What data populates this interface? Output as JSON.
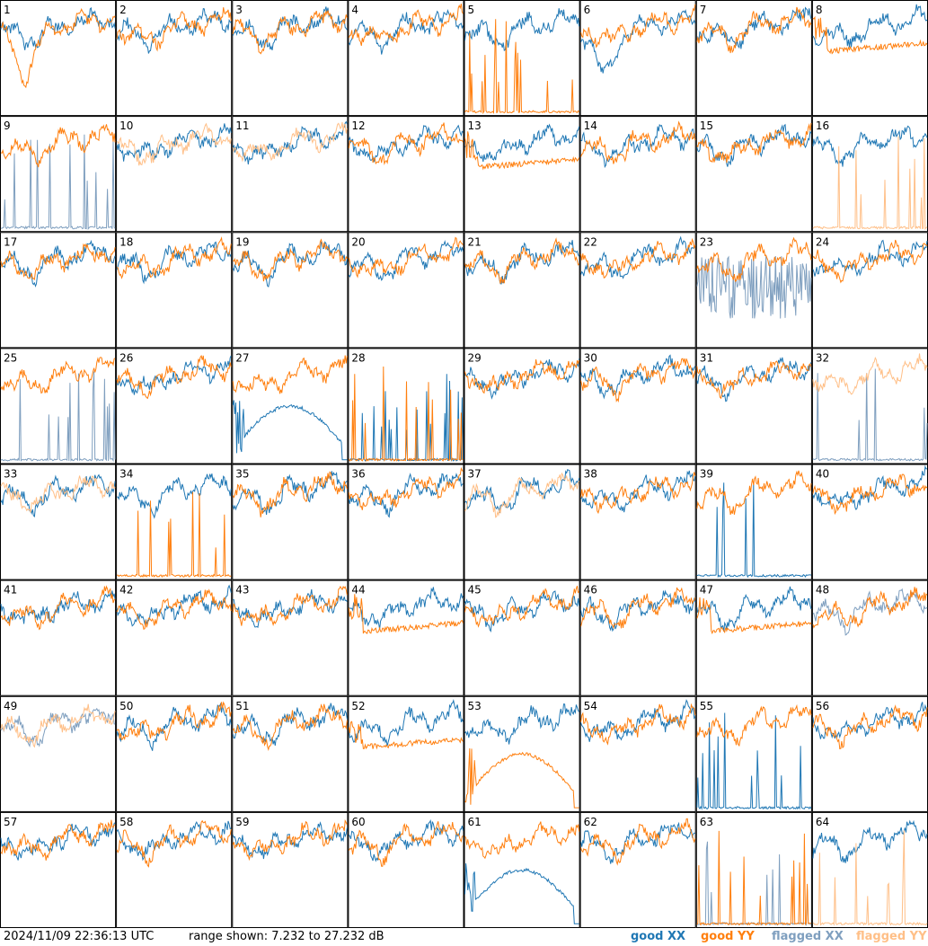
{
  "footer": {
    "timestamp": "2024/11/09 22:36:13 UTC",
    "range_text": "range shown: 7.232 to 27.232 dB"
  },
  "legend": [
    {
      "key": "good_xx",
      "label": "good XX",
      "color": "#1f77b4"
    },
    {
      "key": "good_yy",
      "label": "good YY",
      "color": "#ff7f0e"
    },
    {
      "key": "flagged_xx",
      "label": "flagged XX",
      "color": "#7f9fbf"
    },
    {
      "key": "flagged_yy",
      "label": "flagged YY",
      "color": "#ffbf87"
    }
  ],
  "chart_data": {
    "type": "line",
    "layout": "small-multiples",
    "ylim": [
      7.232,
      27.232
    ],
    "grid_rows": 8,
    "grid_cols": 8,
    "panels": [
      {
        "id": 1,
        "xx": "good",
        "yy": "good",
        "xx_shape": "normal",
        "yy_shape": "dip"
      },
      {
        "id": 2,
        "xx": "good",
        "yy": "good",
        "xx_shape": "normal",
        "yy_shape": "normal"
      },
      {
        "id": 3,
        "xx": "good",
        "yy": "good",
        "xx_shape": "normal",
        "yy_shape": "normal"
      },
      {
        "id": 4,
        "xx": "good",
        "yy": "good",
        "xx_shape": "normal",
        "yy_shape": "normal"
      },
      {
        "id": 5,
        "xx": "good",
        "yy": "good",
        "xx_shape": "normal",
        "yy_shape": "spikes"
      },
      {
        "id": 6,
        "xx": "good",
        "yy": "good",
        "xx_shape": "dip",
        "yy_shape": "normal"
      },
      {
        "id": 7,
        "xx": "good",
        "yy": "good",
        "xx_shape": "normal",
        "yy_shape": "normal"
      },
      {
        "id": 8,
        "xx": "good",
        "yy": "good",
        "xx_shape": "normal",
        "yy_shape": "flat"
      },
      {
        "id": 9,
        "xx": "flagged",
        "yy": "good",
        "xx_shape": "spikes",
        "yy_shape": "normal"
      },
      {
        "id": 10,
        "xx": "good",
        "yy": "flagged",
        "xx_shape": "normal",
        "yy_shape": "normal"
      },
      {
        "id": 11,
        "xx": "good",
        "yy": "flagged",
        "xx_shape": "normal",
        "yy_shape": "normal"
      },
      {
        "id": 12,
        "xx": "good",
        "yy": "good",
        "xx_shape": "normal",
        "yy_shape": "normal"
      },
      {
        "id": 13,
        "xx": "good",
        "yy": "good",
        "xx_shape": "normal",
        "yy_shape": "flat"
      },
      {
        "id": 14,
        "xx": "good",
        "yy": "good",
        "xx_shape": "normal",
        "yy_shape": "normal"
      },
      {
        "id": 15,
        "xx": "good",
        "yy": "good",
        "xx_shape": "normal",
        "yy_shape": "normal"
      },
      {
        "id": 16,
        "xx": "good",
        "yy": "flagged",
        "xx_shape": "normal",
        "yy_shape": "spikes"
      },
      {
        "id": 17,
        "xx": "good",
        "yy": "good",
        "xx_shape": "normal",
        "yy_shape": "normal"
      },
      {
        "id": 18,
        "xx": "good",
        "yy": "good",
        "xx_shape": "normal",
        "yy_shape": "normal"
      },
      {
        "id": 19,
        "xx": "good",
        "yy": "good",
        "xx_shape": "normal",
        "yy_shape": "normal"
      },
      {
        "id": 20,
        "xx": "good",
        "yy": "good",
        "xx_shape": "normal",
        "yy_shape": "normal"
      },
      {
        "id": 21,
        "xx": "good",
        "yy": "good",
        "xx_shape": "normal",
        "yy_shape": "normal"
      },
      {
        "id": 22,
        "xx": "good",
        "yy": "good",
        "xx_shape": "normal",
        "yy_shape": "normal"
      },
      {
        "id": 23,
        "xx": "flagged",
        "yy": "good",
        "xx_shape": "noisy",
        "yy_shape": "normal"
      },
      {
        "id": 24,
        "xx": "good",
        "yy": "good",
        "xx_shape": "normal",
        "yy_shape": "normal"
      },
      {
        "id": 25,
        "xx": "flagged",
        "yy": "good",
        "xx_shape": "spikes",
        "yy_shape": "normal"
      },
      {
        "id": 26,
        "xx": "good",
        "yy": "good",
        "xx_shape": "normal",
        "yy_shape": "normal"
      },
      {
        "id": 27,
        "xx": "good",
        "yy": "good",
        "xx_shape": "arc",
        "yy_shape": "normal"
      },
      {
        "id": 28,
        "xx": "good",
        "yy": "good",
        "xx_shape": "spikes",
        "yy_shape": "spikes"
      },
      {
        "id": 29,
        "xx": "good",
        "yy": "good",
        "xx_shape": "normal",
        "yy_shape": "normal"
      },
      {
        "id": 30,
        "xx": "good",
        "yy": "good",
        "xx_shape": "normal",
        "yy_shape": "normal"
      },
      {
        "id": 31,
        "xx": "good",
        "yy": "good",
        "xx_shape": "normal",
        "yy_shape": "normal"
      },
      {
        "id": 32,
        "xx": "flagged",
        "yy": "flagged",
        "xx_shape": "spikes",
        "yy_shape": "normal"
      },
      {
        "id": 33,
        "xx": "good",
        "yy": "flagged",
        "xx_shape": "normal",
        "yy_shape": "normal"
      },
      {
        "id": 34,
        "xx": "good",
        "yy": "good",
        "xx_shape": "normal",
        "yy_shape": "spikes"
      },
      {
        "id": 35,
        "xx": "good",
        "yy": "good",
        "xx_shape": "normal",
        "yy_shape": "normal"
      },
      {
        "id": 36,
        "xx": "good",
        "yy": "good",
        "xx_shape": "normal",
        "yy_shape": "normal"
      },
      {
        "id": 37,
        "xx": "good",
        "yy": "flagged",
        "xx_shape": "normal",
        "yy_shape": "normal"
      },
      {
        "id": 38,
        "xx": "good",
        "yy": "good",
        "xx_shape": "normal",
        "yy_shape": "normal"
      },
      {
        "id": 39,
        "xx": "good",
        "yy": "good",
        "xx_shape": "spikes",
        "yy_shape": "normal"
      },
      {
        "id": 40,
        "xx": "good",
        "yy": "good",
        "xx_shape": "normal",
        "yy_shape": "normal"
      },
      {
        "id": 41,
        "xx": "good",
        "yy": "good",
        "xx_shape": "normal",
        "yy_shape": "normal"
      },
      {
        "id": 42,
        "xx": "good",
        "yy": "good",
        "xx_shape": "normal",
        "yy_shape": "normal"
      },
      {
        "id": 43,
        "xx": "good",
        "yy": "good",
        "xx_shape": "normal",
        "yy_shape": "normal"
      },
      {
        "id": 44,
        "xx": "good",
        "yy": "good",
        "xx_shape": "normal",
        "yy_shape": "flat"
      },
      {
        "id": 45,
        "xx": "good",
        "yy": "good",
        "xx_shape": "normal",
        "yy_shape": "normal"
      },
      {
        "id": 46,
        "xx": "good",
        "yy": "good",
        "xx_shape": "normal",
        "yy_shape": "normal"
      },
      {
        "id": 47,
        "xx": "good",
        "yy": "good",
        "xx_shape": "normal",
        "yy_shape": "flat"
      },
      {
        "id": 48,
        "xx": "flagged",
        "yy": "good",
        "xx_shape": "normal",
        "yy_shape": "normal"
      },
      {
        "id": 49,
        "xx": "flagged",
        "yy": "flagged",
        "xx_shape": "normal",
        "yy_shape": "normal"
      },
      {
        "id": 50,
        "xx": "good",
        "yy": "good",
        "xx_shape": "normal",
        "yy_shape": "normal"
      },
      {
        "id": 51,
        "xx": "good",
        "yy": "good",
        "xx_shape": "normal",
        "yy_shape": "normal"
      },
      {
        "id": 52,
        "xx": "good",
        "yy": "good",
        "xx_shape": "normal",
        "yy_shape": "flat"
      },
      {
        "id": 53,
        "xx": "good",
        "yy": "good",
        "xx_shape": "normal",
        "yy_shape": "arc"
      },
      {
        "id": 54,
        "xx": "good",
        "yy": "good",
        "xx_shape": "normal",
        "yy_shape": "normal"
      },
      {
        "id": 55,
        "xx": "good",
        "yy": "good",
        "xx_shape": "spikes",
        "yy_shape": "normal"
      },
      {
        "id": 56,
        "xx": "good",
        "yy": "good",
        "xx_shape": "normal",
        "yy_shape": "normal"
      },
      {
        "id": 57,
        "xx": "good",
        "yy": "good",
        "xx_shape": "normal",
        "yy_shape": "normal"
      },
      {
        "id": 58,
        "xx": "good",
        "yy": "good",
        "xx_shape": "normal",
        "yy_shape": "normal"
      },
      {
        "id": 59,
        "xx": "good",
        "yy": "good",
        "xx_shape": "normal",
        "yy_shape": "normal"
      },
      {
        "id": 60,
        "xx": "good",
        "yy": "good",
        "xx_shape": "normal",
        "yy_shape": "normal"
      },
      {
        "id": 61,
        "xx": "good",
        "yy": "good",
        "xx_shape": "arc",
        "yy_shape": "normal"
      },
      {
        "id": 62,
        "xx": "good",
        "yy": "good",
        "xx_shape": "normal",
        "yy_shape": "normal"
      },
      {
        "id": 63,
        "xx": "flagged",
        "yy": "good",
        "xx_shape": "spikes",
        "yy_shape": "spikes"
      },
      {
        "id": 64,
        "xx": "good",
        "yy": "flagged",
        "xx_shape": "normal",
        "yy_shape": "spikes"
      }
    ]
  }
}
